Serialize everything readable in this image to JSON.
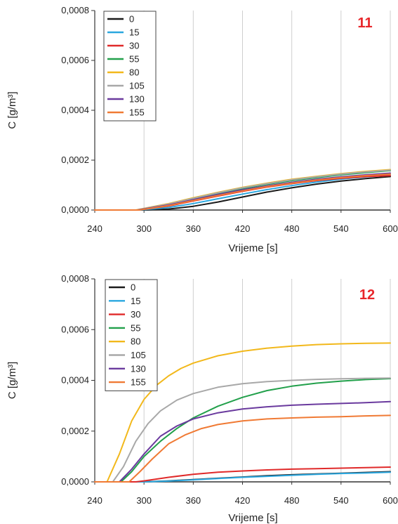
{
  "chart_data": [
    {
      "type": "line",
      "panel_label": "11",
      "xlabel": "Vrijeme [s]",
      "ylabel": "C [g/m³]",
      "xlim": [
        240,
        600
      ],
      "ylim": [
        0,
        0.0008
      ],
      "x_ticks": [
        "240",
        "300",
        "360",
        "420",
        "480",
        "540",
        "600"
      ],
      "y_ticks": [
        "0,0000",
        "0,0002",
        "0,0004",
        "0,0006",
        "0,0008"
      ],
      "grid": "vertical",
      "legend_position": "top-left",
      "series": [
        {
          "name": "0",
          "color": "#1a1a1a",
          "x": [
            240,
            300,
            330,
            360,
            390,
            420,
            450,
            480,
            510,
            540,
            570,
            600
          ],
          "y": [
            0,
            0,
            4e-06,
            1.5e-05,
            3.2e-05,
            5.2e-05,
            7.2e-05,
            8.9e-05,
            0.000104,
            0.000116,
            0.000126,
            0.000134
          ]
        },
        {
          "name": "15",
          "color": "#2aa7df",
          "x": [
            240,
            295,
            330,
            360,
            390,
            420,
            450,
            480,
            510,
            540,
            570,
            600
          ],
          "y": [
            0,
            0,
            1e-05,
            2.6e-05,
            4.5e-05,
            6.4e-05,
            8.2e-05,
            9.8e-05,
            0.000112,
            0.000124,
            0.000133,
            0.00014
          ]
        },
        {
          "name": "30",
          "color": "#e02a2a",
          "x": [
            240,
            293,
            330,
            360,
            390,
            420,
            450,
            480,
            510,
            540,
            570,
            600
          ],
          "y": [
            0,
            0,
            1.6e-05,
            3.6e-05,
            5.6e-05,
            7.5e-05,
            9.2e-05,
            0.000106,
            0.000118,
            0.000127,
            0.000134,
            0.000138
          ]
        },
        {
          "name": "55",
          "color": "#22a04b",
          "x": [
            240,
            292,
            330,
            360,
            390,
            420,
            450,
            480,
            510,
            540,
            570,
            600
          ],
          "y": [
            0,
            0,
            2.2e-05,
            4.4e-05,
            6.6e-05,
            8.6e-05,
            0.000103,
            0.000118,
            0.00013,
            0.000141,
            0.00015,
            0.000158
          ]
        },
        {
          "name": "80",
          "color": "#f2b81b",
          "x": [
            240,
            290,
            330,
            360,
            390,
            420,
            450,
            480,
            510,
            540,
            570,
            600
          ],
          "y": [
            0,
            0,
            2.6e-05,
            4.9e-05,
            7.1e-05,
            9.1e-05,
            0.000108,
            0.000123,
            0.000135,
            0.000146,
            0.000155,
            0.000162
          ]
        },
        {
          "name": "105",
          "color": "#a8a8a8",
          "x": [
            240,
            291,
            330,
            360,
            390,
            420,
            450,
            480,
            510,
            540,
            570,
            600
          ],
          "y": [
            0,
            0,
            2.4e-05,
            4.7e-05,
            6.9e-05,
            8.9e-05,
            0.000106,
            0.000121,
            0.000133,
            0.000144,
            0.000153,
            0.00016
          ]
        },
        {
          "name": "130",
          "color": "#6a3a9e",
          "x": [
            240,
            292,
            330,
            360,
            390,
            420,
            450,
            480,
            510,
            540,
            570,
            600
          ],
          "y": [
            0,
            0,
            2e-05,
            4.1e-05,
            6.2e-05,
            8.1e-05,
            9.7e-05,
            0.000111,
            0.000123,
            0.000133,
            0.000141,
            0.000148
          ]
        },
        {
          "name": "155",
          "color": "#f07a34",
          "x": [
            240,
            294,
            330,
            360,
            390,
            420,
            450,
            480,
            510,
            540,
            570,
            600
          ],
          "y": [
            0,
            0,
            1.8e-05,
            3.8e-05,
            5.8e-05,
            7.7e-05,
            9.4e-05,
            0.000108,
            0.00012,
            0.00013,
            0.000138,
            0.000144
          ]
        }
      ]
    },
    {
      "type": "line",
      "panel_label": "12",
      "xlabel": "Vrijeme [s]",
      "ylabel": "C [g/m³]",
      "xlim": [
        240,
        600
      ],
      "ylim": [
        0,
        0.0008
      ],
      "x_ticks": [
        "240",
        "300",
        "360",
        "420",
        "480",
        "540",
        "600"
      ],
      "y_ticks": [
        "0,0000",
        "0,0002",
        "0,0004",
        "0,0006",
        "0,0008"
      ],
      "grid": "vertical",
      "legend_position": "top-left",
      "series": [
        {
          "name": "0",
          "color": "#1a1a1a",
          "x": [
            240,
            300,
            330,
            360,
            390,
            420,
            450,
            480,
            510,
            540,
            570,
            600
          ],
          "y": [
            0,
            0,
            4e-06,
            9e-06,
            1.4e-05,
            1.9e-05,
            2.4e-05,
            2.8e-05,
            3.1e-05,
            3.4e-05,
            3.7e-05,
            4e-05
          ]
        },
        {
          "name": "15",
          "color": "#2aa7df",
          "x": [
            240,
            300,
            330,
            360,
            390,
            420,
            450,
            480,
            510,
            540,
            570,
            600
          ],
          "y": [
            0,
            0,
            3e-06,
            8e-06,
            1.3e-05,
            1.8e-05,
            2.2e-05,
            2.6e-05,
            3e-05,
            3.3e-05,
            3.5e-05,
            3.8e-05
          ]
        },
        {
          "name": "30",
          "color": "#e02a2a",
          "x": [
            240,
            290,
            300,
            330,
            360,
            390,
            420,
            450,
            480,
            510,
            540,
            570,
            600
          ],
          "y": [
            0,
            0,
            4e-06,
            1.8e-05,
            3e-05,
            3.8e-05,
            4.3e-05,
            4.7e-05,
            5e-05,
            5.2e-05,
            5.4e-05,
            5.6e-05,
            5.8e-05
          ]
        },
        {
          "name": "55",
          "color": "#22a04b",
          "x": [
            240,
            272,
            285,
            300,
            320,
            340,
            360,
            390,
            420,
            450,
            480,
            510,
            540,
            570,
            600
          ],
          "y": [
            0,
            0,
            4e-05,
            0.0001,
            0.00016,
            0.00021,
            0.000252,
            0.000298,
            0.000333,
            0.00036,
            0.000377,
            0.000389,
            0.000397,
            0.000403,
            0.000407
          ]
        },
        {
          "name": "80",
          "color": "#f2b81b",
          "x": [
            240,
            255,
            270,
            285,
            300,
            315,
            330,
            345,
            360,
            390,
            420,
            450,
            480,
            510,
            540,
            570,
            600
          ],
          "y": [
            0,
            0,
            0.00011,
            0.00024,
            0.000325,
            0.00038,
            0.000418,
            0.000447,
            0.000468,
            0.000497,
            0.000515,
            0.000527,
            0.000535,
            0.000541,
            0.000544,
            0.000546,
            0.000547
          ]
        },
        {
          "name": "105",
          "color": "#a8a8a8",
          "x": [
            240,
            262,
            275,
            290,
            305,
            320,
            340,
            360,
            390,
            420,
            450,
            480,
            510,
            540,
            570,
            600
          ],
          "y": [
            0,
            0,
            6e-05,
            0.00016,
            0.00023,
            0.00028,
            0.000322,
            0.000348,
            0.000373,
            0.000387,
            0.000395,
            0.0004,
            0.000404,
            0.000406,
            0.000408,
            0.000409
          ]
        },
        {
          "name": "130",
          "color": "#6a3a9e",
          "x": [
            240,
            270,
            285,
            300,
            320,
            340,
            360,
            390,
            420,
            450,
            480,
            510,
            540,
            570,
            600
          ],
          "y": [
            0,
            0,
            5e-05,
            0.00011,
            0.00018,
            0.00022,
            0.000248,
            0.000272,
            0.000287,
            0.000296,
            0.000302,
            0.000306,
            0.000309,
            0.000312,
            0.000316
          ]
        },
        {
          "name": "155",
          "color": "#f07a34",
          "x": [
            240,
            282,
            295,
            310,
            330,
            350,
            370,
            390,
            420,
            450,
            480,
            510,
            540,
            570,
            600
          ],
          "y": [
            0,
            0,
            4e-05,
            9e-05,
            0.00015,
            0.000185,
            0.00021,
            0.000226,
            0.00024,
            0.000248,
            0.000252,
            0.000255,
            0.000257,
            0.00026,
            0.000262
          ]
        }
      ]
    }
  ]
}
